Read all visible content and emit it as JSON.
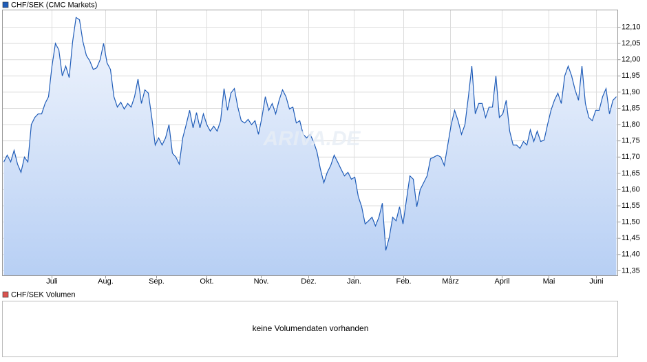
{
  "chart_data": {
    "type": "line",
    "series": [
      {
        "name": "CHF/SEK (CMC Markets)",
        "color": "#1f5cb8",
        "values": [
          11.685,
          11.706,
          11.685,
          11.721,
          11.678,
          11.653,
          11.7,
          11.685,
          11.8,
          11.822,
          11.833,
          11.833,
          11.865,
          11.886,
          11.98,
          12.05,
          12.03,
          11.95,
          11.98,
          11.945,
          12.055,
          12.13,
          12.123,
          12.055,
          12.013,
          11.996,
          11.97,
          11.975,
          12.0,
          12.05,
          11.99,
          11.97,
          11.886,
          11.854,
          11.869,
          11.848,
          11.865,
          11.854,
          11.886,
          11.94,
          11.865,
          11.907,
          11.897,
          11.822,
          11.737,
          11.759,
          11.737,
          11.759,
          11.8,
          11.712,
          11.7,
          11.678,
          11.759,
          11.8,
          11.844,
          11.79,
          11.837,
          11.79,
          11.833,
          11.8,
          11.78,
          11.795,
          11.78,
          11.812,
          11.911,
          11.844,
          11.897,
          11.911,
          11.854,
          11.812,
          11.805,
          11.816,
          11.8,
          11.812,
          11.77,
          11.822,
          11.886,
          11.844,
          11.865,
          11.833,
          11.875,
          11.907,
          11.886,
          11.848,
          11.854,
          11.805,
          11.812,
          11.77,
          11.759,
          11.77,
          11.748,
          11.716,
          11.663,
          11.621,
          11.653,
          11.674,
          11.706,
          11.685,
          11.663,
          11.642,
          11.653,
          11.632,
          11.638,
          11.579,
          11.547,
          11.494,
          11.504,
          11.515,
          11.488,
          11.515,
          11.558,
          11.413,
          11.452,
          11.515,
          11.504,
          11.547,
          11.494,
          11.568,
          11.642,
          11.632,
          11.547,
          11.6,
          11.621,
          11.642,
          11.695,
          11.7,
          11.706,
          11.7,
          11.674,
          11.737,
          11.8,
          11.844,
          11.812,
          11.77,
          11.8,
          11.886,
          11.98,
          11.833,
          11.865,
          11.865,
          11.822,
          11.854,
          11.854,
          11.95,
          11.822,
          11.833,
          11.875,
          11.78,
          11.737,
          11.737,
          11.727,
          11.748,
          11.737,
          11.784,
          11.748,
          11.78,
          11.748,
          11.752,
          11.8,
          11.844,
          11.875,
          11.897,
          11.865,
          11.95,
          11.98,
          11.95,
          11.907,
          11.875,
          11.98,
          11.865,
          11.822,
          11.812,
          11.844,
          11.844,
          11.886,
          11.911,
          11.833,
          11.875,
          11.886
        ]
      }
    ],
    "xlim": [
      -0.4,
      178.4
    ],
    "xticks": [
      {
        "value": 14,
        "label": "Juli"
      },
      {
        "value": 29.6,
        "label": "Aug."
      },
      {
        "value": 44.4,
        "label": "Sep."
      },
      {
        "value": 59,
        "label": "Okt."
      },
      {
        "value": 74.8,
        "label": "Nov."
      },
      {
        "value": 88.6,
        "label": "Dez."
      },
      {
        "value": 101.8,
        "label": "Jan."
      },
      {
        "value": 116.2,
        "label": "Feb."
      },
      {
        "value": 129.8,
        "label": "März"
      },
      {
        "value": 144.8,
        "label": "April"
      },
      {
        "value": 158.4,
        "label": "Mai"
      },
      {
        "value": 172.2,
        "label": "Juni"
      }
    ],
    "ylim": [
      11.335,
      12.153
    ],
    "yticks": [
      {
        "value": 11.35,
        "label": "11,35"
      },
      {
        "value": 11.4,
        "label": "11,40"
      },
      {
        "value": 11.45,
        "label": "11,45"
      },
      {
        "value": 11.5,
        "label": "11,50"
      },
      {
        "value": 11.55,
        "label": "11,55"
      },
      {
        "value": 11.6,
        "label": "11,60"
      },
      {
        "value": 11.65,
        "label": "11,65"
      },
      {
        "value": 11.7,
        "label": "11,70"
      },
      {
        "value": 11.75,
        "label": "11,75"
      },
      {
        "value": 11.8,
        "label": "11,80"
      },
      {
        "value": 11.85,
        "label": "11,85"
      },
      {
        "value": 11.9,
        "label": "11,90"
      },
      {
        "value": 11.95,
        "label": "11,95"
      },
      {
        "value": 12.0,
        "label": "12,00"
      },
      {
        "value": 12.05,
        "label": "12,05"
      },
      {
        "value": 12.1,
        "label": "12,10"
      }
    ],
    "grid": true,
    "watermark": "ARIVA.DE"
  },
  "volume_panel": {
    "title": "CHF/SEK Volumen",
    "color": "#d9534f",
    "message": "keine Volumendaten vorhanden"
  }
}
